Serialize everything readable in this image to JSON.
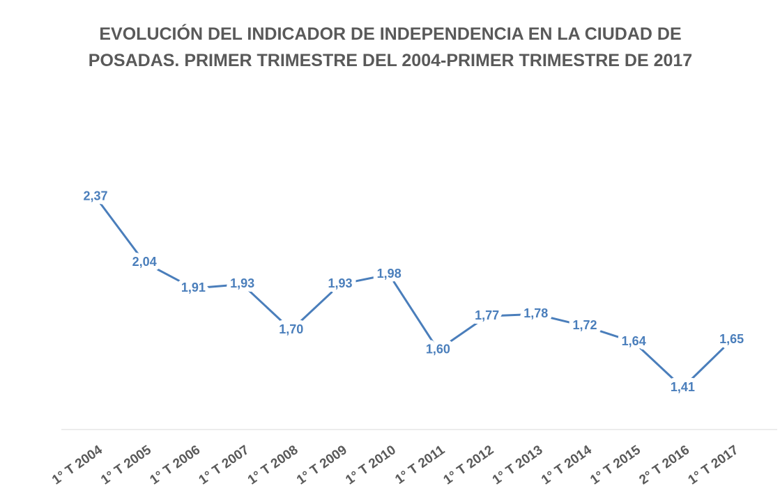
{
  "chart_data": {
    "type": "line",
    "title": "EVOLUCIÓN DEL INDICADOR DE INDEPENDENCIA EN LA CIUDAD DE POSADAS. PRIMER TRIMESTRE DEL 2004-PRIMER TRIMESTRE DE 2017",
    "categories": [
      "1° T 2004",
      "1° T 2005",
      "1° T 2006",
      "1° T 2007",
      "1° T 2008",
      "1° T 2009",
      "1° T 2010",
      "1° T 2011",
      "1° T 2012",
      "1° T 2013",
      "1° T 2014",
      "1° T 2015",
      "2° T 2016",
      "1° T 2017"
    ],
    "values": [
      2.37,
      2.04,
      1.91,
      1.93,
      1.7,
      1.93,
      1.98,
      1.6,
      1.77,
      1.78,
      1.72,
      1.64,
      1.41,
      1.65
    ],
    "value_labels": [
      "2,37",
      "2,04",
      "1,91",
      "1,93",
      "1,70",
      "1,93",
      "1,98",
      "1,60",
      "1,77",
      "1,78",
      "1,72",
      "1,64",
      "1,41",
      "1,65"
    ],
    "color": "#4a7ebb",
    "ylim": [
      1.2,
      2.6
    ]
  }
}
